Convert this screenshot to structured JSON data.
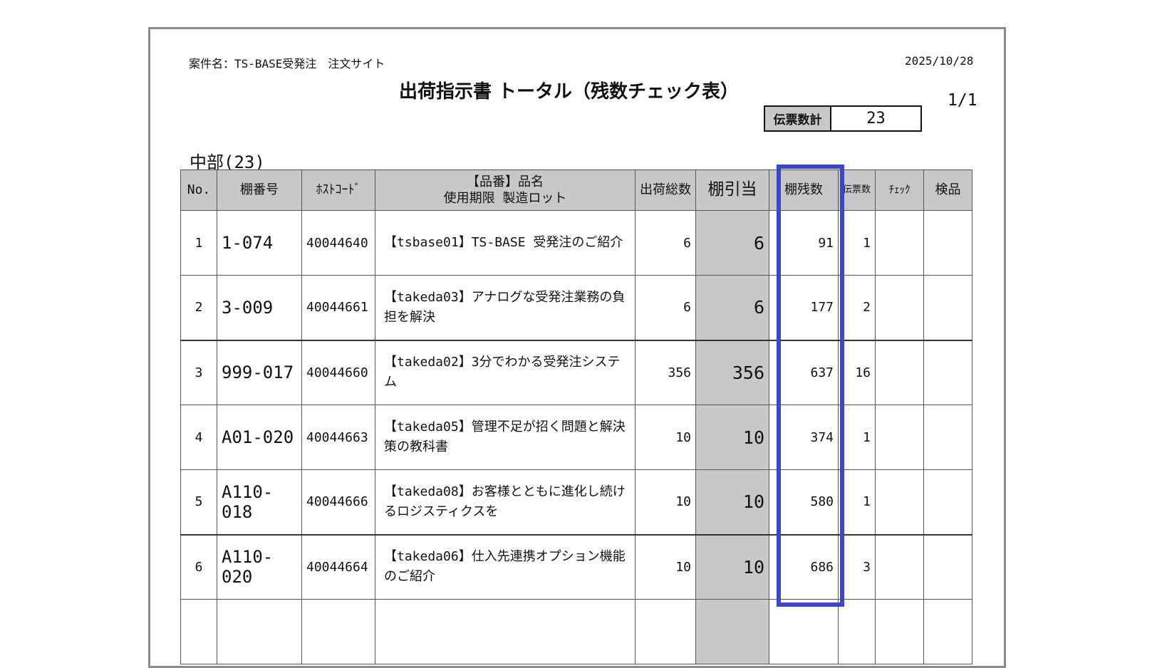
{
  "header": {
    "project": "案件名：TS-BASE受発注　注文サイト",
    "date": "2025/10/28",
    "title": "出荷指示書 トータル（残数チェック表）",
    "page": "1/1",
    "slip_total_label": "伝票数計",
    "slip_total_value": "23"
  },
  "region": "中部(23)",
  "table": {
    "columns": [
      "No.",
      "棚番号",
      "ﾎｽﾄｺｰﾄﾞ",
      "【品番】品名",
      "使用期限 製造ロット",
      "出荷総数",
      "棚引当",
      "棚残数",
      "伝票数",
      "ﾁｪｯｸ",
      "検品"
    ],
    "rows": [
      {
        "no": "1",
        "loc": "1-074",
        "code": "40044640",
        "name": "【tsbase01】TS-BASE 受発注のご紹介",
        "total": "6",
        "alloc": "6",
        "remain": "91",
        "slips": "1"
      },
      {
        "no": "2",
        "loc": "3-009",
        "code": "40044661",
        "name": "【takeda03】アナログな受発注業務の負担を解決",
        "total": "6",
        "alloc": "6",
        "remain": "177",
        "slips": "2"
      },
      {
        "no": "3",
        "loc": "999-017",
        "code": "40044660",
        "name": "【takeda02】3分でわかる受発注システム",
        "total": "356",
        "alloc": "356",
        "remain": "637",
        "slips": "16"
      },
      {
        "no": "4",
        "loc": "A01-020",
        "code": "40044663",
        "name": "【takeda05】管理不足が招く問題と解決策の教科書",
        "total": "10",
        "alloc": "10",
        "remain": "374",
        "slips": "1"
      },
      {
        "no": "5",
        "loc": "A110-018",
        "code": "40044666",
        "name": "【takeda08】お客様とともに進化し続けるロジスティクスを",
        "total": "10",
        "alloc": "10",
        "remain": "580",
        "slips": "1"
      },
      {
        "no": "6",
        "loc": "A110-020",
        "code": "40044664",
        "name": "【takeda06】仕入先連携オプション機能のご紹介",
        "total": "10",
        "alloc": "10",
        "remain": "686",
        "slips": "3"
      }
    ]
  },
  "colors": {
    "highlight": "#3d45c8",
    "header_bg": "#c8c8c8",
    "border": "#8a8a8a"
  }
}
